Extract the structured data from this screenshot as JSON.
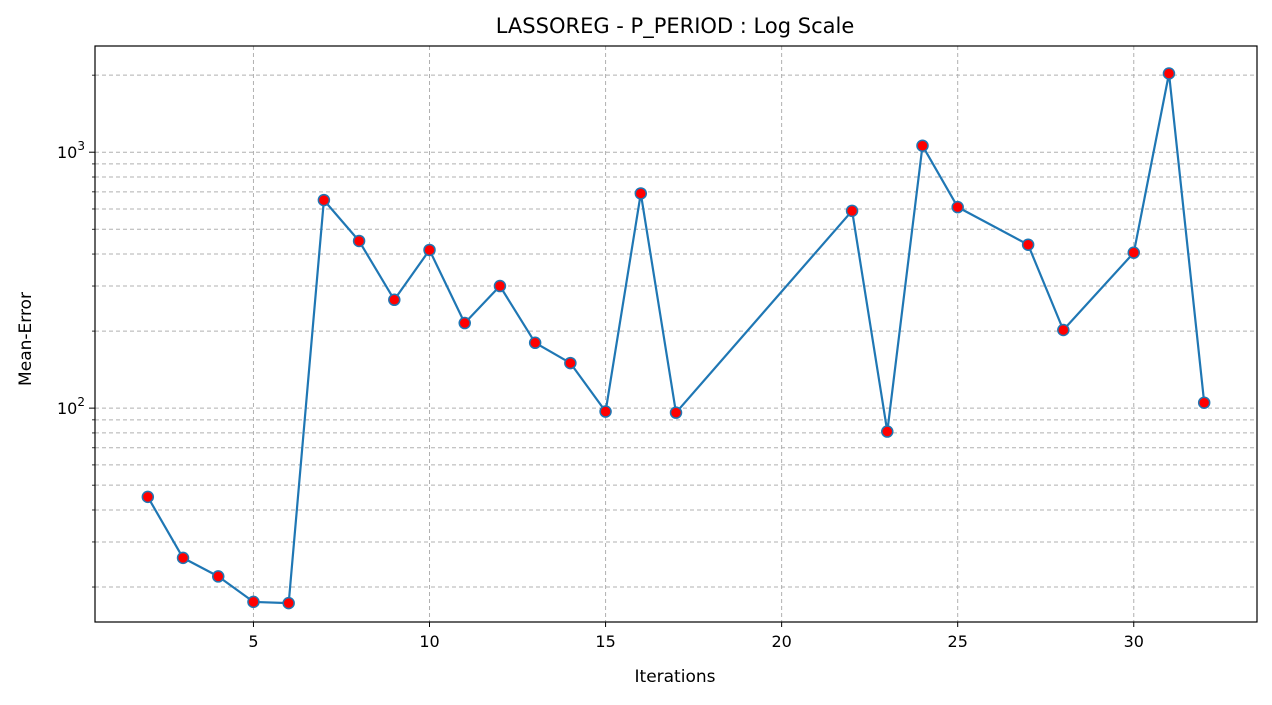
{
  "chart_data": {
    "type": "line",
    "title": "LASSOREG - P_PERIOD : Log Scale",
    "xlabel": "Iterations",
    "ylabel": "Mean-Error",
    "yscale": "log",
    "xlim": [
      0.5,
      33.5
    ],
    "ylim": [
      14.6,
      2600
    ],
    "grid": true,
    "x_ticks": [
      5,
      10,
      15,
      20,
      25,
      30
    ],
    "y_major_ticks": [
      {
        "value": 100,
        "base": "10",
        "exp": "2"
      },
      {
        "value": 1000,
        "base": "10",
        "exp": "3"
      }
    ],
    "y_minor_ticks": [
      20,
      30,
      40,
      50,
      60,
      70,
      80,
      90,
      200,
      300,
      400,
      500,
      600,
      700,
      800,
      900,
      2000
    ],
    "series": [
      {
        "x": [
          2,
          3,
          4,
          5,
          6,
          7,
          8,
          9,
          10,
          11,
          12,
          13,
          14,
          15,
          16,
          17,
          22,
          23,
          24,
          25,
          27,
          28,
          30,
          31,
          32
        ],
        "y": [
          45,
          26,
          22,
          17.5,
          17.3,
          650,
          450,
          265,
          415,
          215,
          300,
          180,
          150,
          97,
          690,
          96,
          590,
          81,
          1060,
          610,
          435,
          202,
          405,
          2030,
          105
        ],
        "line_color": "#1f77b4",
        "marker_face_color": "#ff0000",
        "marker_edge_color": "#1f77b4"
      }
    ]
  }
}
